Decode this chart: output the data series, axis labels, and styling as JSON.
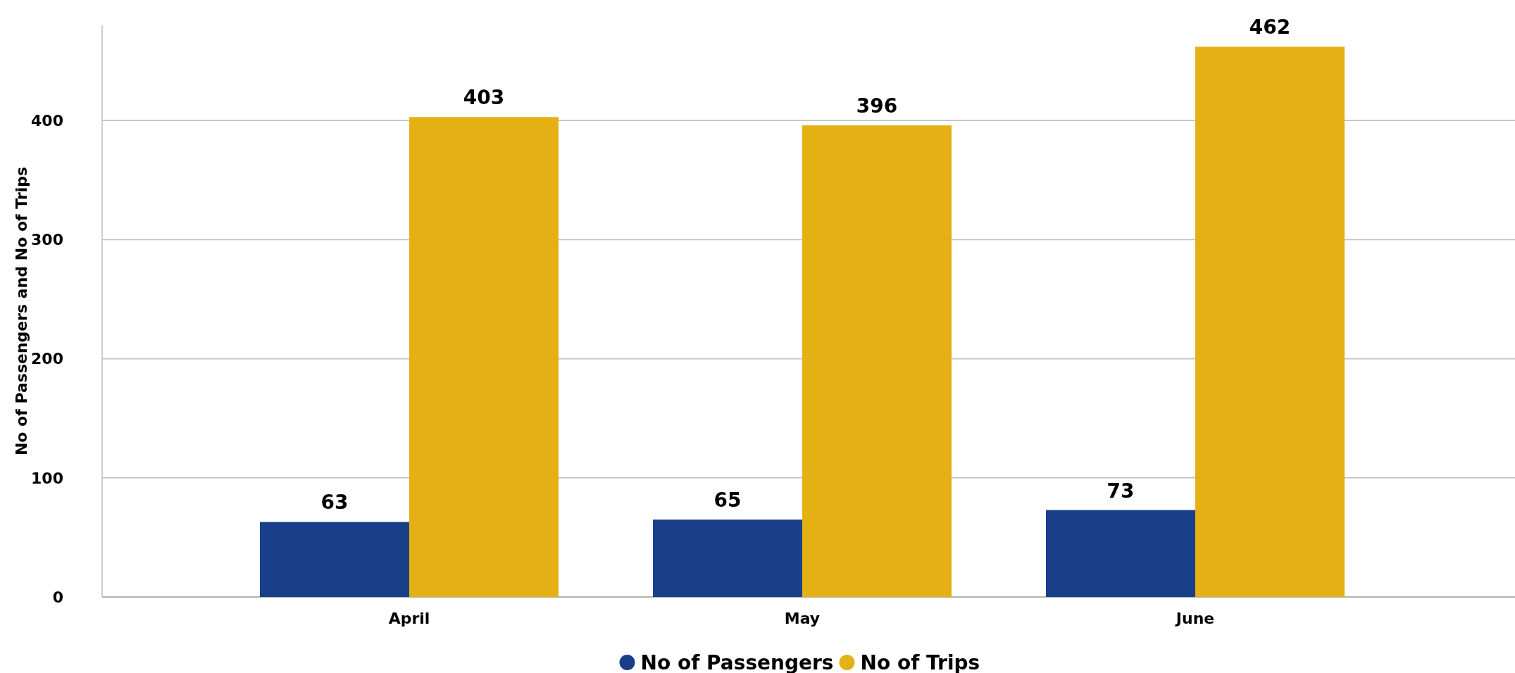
{
  "chart_data": {
    "type": "bar",
    "ylabel": "No of Passengers and No of Trips",
    "categories": [
      "April",
      "May",
      "June"
    ],
    "series": [
      {
        "name": "No of Passengers",
        "color": "#1a3f8a",
        "values": [
          63,
          65,
          73
        ]
      },
      {
        "name": "No of Trips",
        "color": "#e5b013",
        "values": [
          403,
          396,
          462
        ]
      }
    ],
    "ylim": [
      0,
      480
    ],
    "yticks": [
      0,
      100,
      200,
      300,
      400
    ],
    "grid": "y",
    "legend": "bottom",
    "data_labels": true
  }
}
